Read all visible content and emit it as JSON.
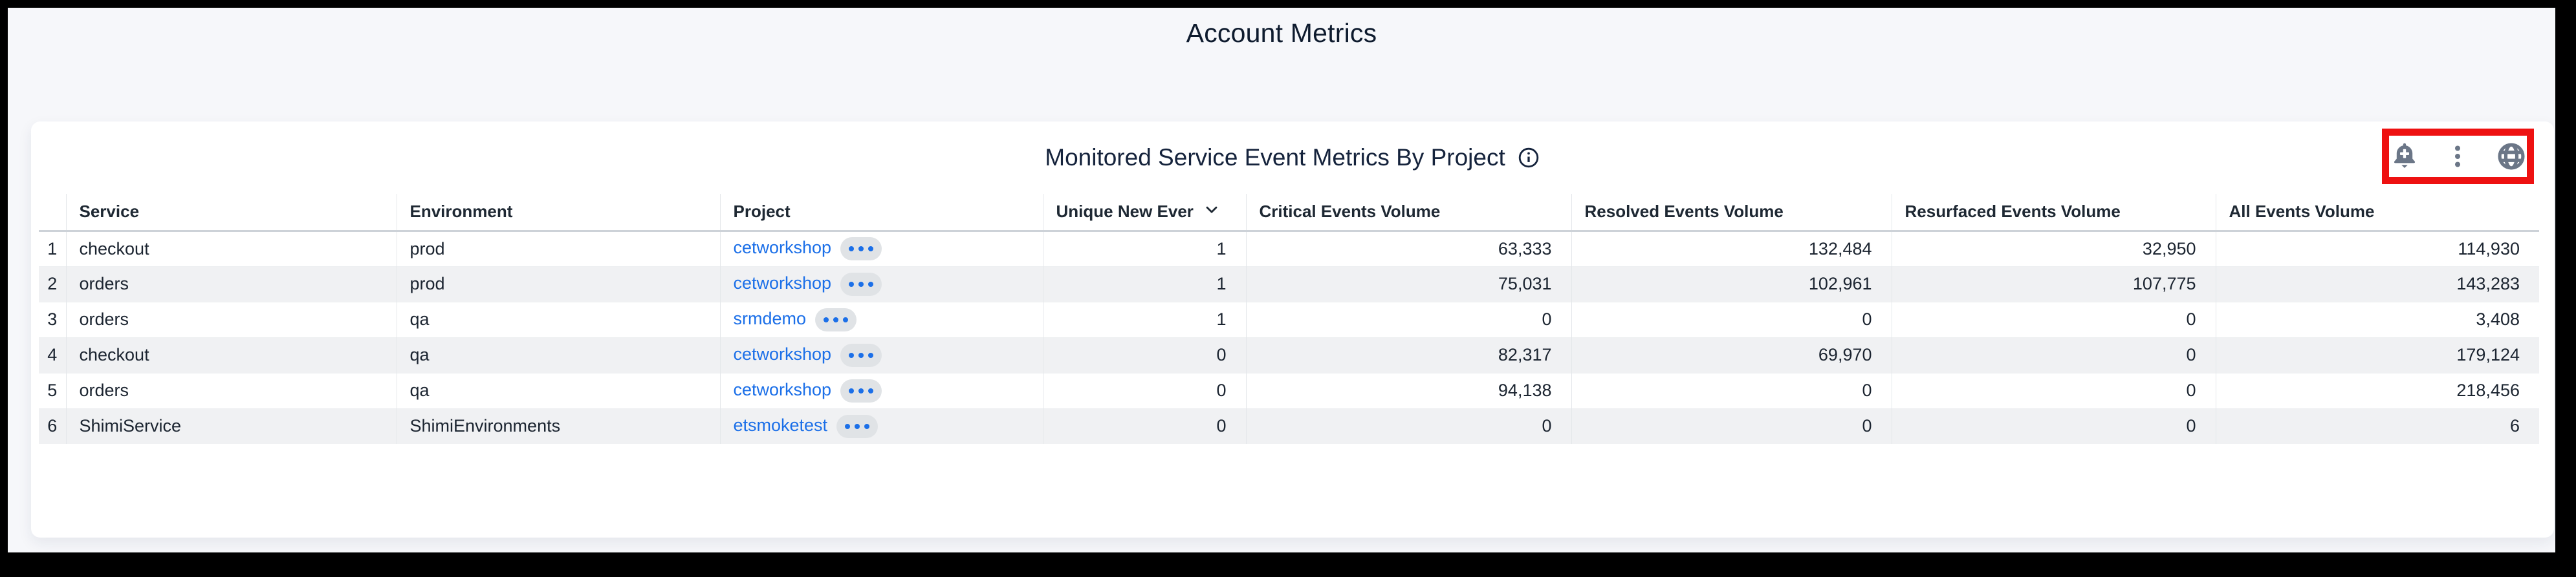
{
  "page": {
    "title": "Account Metrics"
  },
  "panel": {
    "title": "Monitored Service Event Metrics By Project",
    "toolbar": {
      "icons": [
        "bell-plus-icon",
        "kebab-menu-icon",
        "globe-icon"
      ],
      "highlight_color": "#ee1111",
      "icon_color": "#6b7687"
    }
  },
  "table": {
    "columns": [
      {
        "label": "Service"
      },
      {
        "label": "Environment"
      },
      {
        "label": "Project"
      },
      {
        "label": "Unique New Ever",
        "sorted": "desc"
      },
      {
        "label": "Critical Events Volume"
      },
      {
        "label": "Resolved Events Volume"
      },
      {
        "label": "Resurfaced Events Volume"
      },
      {
        "label": "All Events Volume"
      }
    ],
    "rows": [
      {
        "num": "1",
        "service": "checkout",
        "environment": "prod",
        "project": "cetworkshop",
        "unique_new_events": "1",
        "critical_events_volume": "63,333",
        "resolved_events_volume": "132,484",
        "resurfaced_events_volume": "32,950",
        "all_events_volume": "114,930"
      },
      {
        "num": "2",
        "service": "orders",
        "environment": "prod",
        "project": "cetworkshop",
        "unique_new_events": "1",
        "critical_events_volume": "75,031",
        "resolved_events_volume": "102,961",
        "resurfaced_events_volume": "107,775",
        "all_events_volume": "143,283"
      },
      {
        "num": "3",
        "service": "orders",
        "environment": "qa",
        "project": "srmdemo",
        "unique_new_events": "1",
        "critical_events_volume": "0",
        "resolved_events_volume": "0",
        "resurfaced_events_volume": "0",
        "all_events_volume": "3,408"
      },
      {
        "num": "4",
        "service": "checkout",
        "environment": "qa",
        "project": "cetworkshop",
        "unique_new_events": "0",
        "critical_events_volume": "82,317",
        "resolved_events_volume": "69,970",
        "resurfaced_events_volume": "0",
        "all_events_volume": "179,124"
      },
      {
        "num": "5",
        "service": "orders",
        "environment": "qa",
        "project": "cetworkshop",
        "unique_new_events": "0",
        "critical_events_volume": "94,138",
        "resolved_events_volume": "0",
        "resurfaced_events_volume": "0",
        "all_events_volume": "218,456"
      },
      {
        "num": "6",
        "service": "ShimiService",
        "environment": "ShimiEnvironments",
        "project": "etsmoketest",
        "unique_new_events": "0",
        "critical_events_volume": "0",
        "resolved_events_volume": "0",
        "resurfaced_events_volume": "0",
        "all_events_volume": "6"
      }
    ]
  },
  "colors": {
    "link": "#1b6fe8",
    "stripe": "#f0f1f3",
    "background": "#f6f7fa"
  }
}
